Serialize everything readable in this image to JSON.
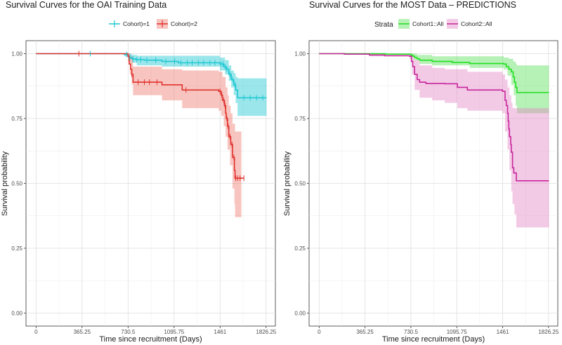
{
  "chart_data": [
    {
      "type": "line",
      "title": "Survival Curves for the OAI Training Data",
      "xlabel": "Time since recruitment (Days)",
      "ylabel": "Survival probability",
      "xlim": [
        -80,
        1900
      ],
      "ylim": [
        -0.05,
        1.05
      ],
      "x_ticks": [
        0,
        365.25,
        730.5,
        1095.75,
        1461,
        1826.25
      ],
      "x_tick_labels": [
        "0",
        "365.25",
        "730.5",
        "1095.75",
        "1461",
        "1826.25"
      ],
      "y_ticks": [
        0,
        0.25,
        0.5,
        0.75,
        1
      ],
      "y_tick_labels": [
        "0.00",
        "0.25",
        "0.50",
        "0.75",
        "1.00"
      ],
      "legend": {
        "title": "",
        "position": "top"
      },
      "series": [
        {
          "name": "Cohort)=1",
          "color": "#20c8d2",
          "fill": "#20c8d2",
          "steps": [
            [
              0,
              1.0
            ],
            [
              700,
              0.997
            ],
            [
              730,
              0.99
            ],
            [
              740,
              0.985
            ],
            [
              760,
              0.98
            ],
            [
              790,
              0.977
            ],
            [
              860,
              0.975
            ],
            [
              1000,
              0.97
            ],
            [
              1130,
              0.965
            ],
            [
              1460,
              0.96
            ],
            [
              1490,
              0.95
            ],
            [
              1510,
              0.94
            ],
            [
              1530,
              0.92
            ],
            [
              1550,
              0.9
            ],
            [
              1570,
              0.88
            ],
            [
              1585,
              0.86
            ],
            [
              1600,
              0.83
            ],
            [
              1830,
              0.83
            ]
          ],
          "lower": [
            [
              0,
              1.0
            ],
            [
              700,
              0.99
            ],
            [
              730,
              0.98
            ],
            [
              760,
              0.965
            ],
            [
              800,
              0.955
            ],
            [
              1000,
              0.95
            ],
            [
              1460,
              0.935
            ],
            [
              1500,
              0.92
            ],
            [
              1530,
              0.895
            ],
            [
              1550,
              0.87
            ],
            [
              1570,
              0.84
            ],
            [
              1585,
              0.81
            ],
            [
              1600,
              0.76
            ],
            [
              1830,
              0.76
            ]
          ],
          "upper": [
            [
              0,
              1.0
            ],
            [
              730,
              1.0
            ],
            [
              760,
              0.995
            ],
            [
              800,
              0.992
            ],
            [
              1460,
              0.985
            ],
            [
              1500,
              0.975
            ],
            [
              1530,
              0.955
            ],
            [
              1550,
              0.935
            ],
            [
              1570,
              0.925
            ],
            [
              1585,
              0.91
            ],
            [
              1600,
              0.905
            ],
            [
              1830,
              0.905
            ]
          ],
          "censor": [
            430,
            720,
            745,
            770,
            800,
            830,
            880,
            950,
            1030,
            1100,
            1150,
            1200,
            1240,
            1290,
            1330,
            1380,
            1420,
            1470,
            1485,
            1500,
            1515,
            1540,
            1560,
            1580,
            1650,
            1700,
            1750,
            1800
          ]
        },
        {
          "name": "Cohort)=2",
          "color": "#e0332e",
          "fill": "#f07c72",
          "steps": [
            [
              0,
              1.0
            ],
            [
              730,
              0.99
            ],
            [
              740,
              0.96
            ],
            [
              750,
              0.94
            ],
            [
              760,
              0.92
            ],
            [
              770,
              0.89
            ],
            [
              1000,
              0.88
            ],
            [
              1160,
              0.86
            ],
            [
              1450,
              0.855
            ],
            [
              1470,
              0.84
            ],
            [
              1480,
              0.82
            ],
            [
              1495,
              0.8
            ],
            [
              1505,
              0.77
            ],
            [
              1510,
              0.75
            ],
            [
              1520,
              0.72
            ],
            [
              1530,
              0.68
            ],
            [
              1545,
              0.65
            ],
            [
              1560,
              0.6
            ],
            [
              1575,
              0.55
            ],
            [
              1580,
              0.52
            ],
            [
              1650,
              0.52
            ]
          ],
          "lower": [
            [
              0,
              1.0
            ],
            [
              730,
              0.97
            ],
            [
              745,
              0.92
            ],
            [
              760,
              0.88
            ],
            [
              770,
              0.84
            ],
            [
              1000,
              0.82
            ],
            [
              1160,
              0.79
            ],
            [
              1450,
              0.78
            ],
            [
              1470,
              0.76
            ],
            [
              1490,
              0.72
            ],
            [
              1505,
              0.68
            ],
            [
              1520,
              0.63
            ],
            [
              1540,
              0.57
            ],
            [
              1560,
              0.48
            ],
            [
              1575,
              0.42
            ],
            [
              1580,
              0.37
            ],
            [
              1630,
              0.37
            ]
          ],
          "upper": [
            [
              0,
              1.0
            ],
            [
              730,
              1.0
            ],
            [
              750,
              0.99
            ],
            [
              770,
              0.95
            ],
            [
              1000,
              0.94
            ],
            [
              1160,
              0.935
            ],
            [
              1450,
              0.93
            ],
            [
              1480,
              0.91
            ],
            [
              1505,
              0.87
            ],
            [
              1520,
              0.84
            ],
            [
              1530,
              0.8
            ],
            [
              1545,
              0.77
            ],
            [
              1560,
              0.73
            ],
            [
              1580,
              0.7
            ],
            [
              1630,
              0.7
            ]
          ],
          "censor": [
            340,
            760,
            810,
            860,
            900,
            960,
            1190,
            1460,
            1475,
            1490,
            1500,
            1515,
            1525,
            1540,
            1555,
            1570,
            1585,
            1600,
            1620,
            1650
          ]
        }
      ]
    },
    {
      "type": "line",
      "title": "Survival Curves for the MOST Data – PREDICTIONS",
      "xlabel": "Time since recruitment (Days)",
      "ylabel": "Survival probability",
      "xlim": [
        -80,
        1900
      ],
      "ylim": [
        -0.05,
        1.05
      ],
      "x_ticks": [
        0,
        365.25,
        730.5,
        1095.75,
        1461,
        1826.25
      ],
      "x_tick_labels": [
        "0",
        "365.25",
        "730.5",
        "1095.75",
        "1461",
        "1826.25"
      ],
      "y_ticks": [
        0,
        0.25,
        0.5,
        0.75,
        1
      ],
      "y_tick_labels": [
        "0.00",
        "0.25",
        "0.50",
        "0.75",
        "1.00"
      ],
      "legend": {
        "title": "Strata",
        "position": "top"
      },
      "series": [
        {
          "name": "Cohort1::All",
          "color": "#22e022",
          "fill": "#5ee05e",
          "steps": [
            [
              0,
              1.0
            ],
            [
              530,
              0.998
            ],
            [
              730,
              0.995
            ],
            [
              745,
              0.99
            ],
            [
              760,
              0.985
            ],
            [
              780,
              0.98
            ],
            [
              800,
              0.975
            ],
            [
              900,
              0.97
            ],
            [
              1060,
              0.966
            ],
            [
              1200,
              0.962
            ],
            [
              1470,
              0.96
            ],
            [
              1490,
              0.95
            ],
            [
              1510,
              0.94
            ],
            [
              1530,
              0.93
            ],
            [
              1545,
              0.91
            ],
            [
              1555,
              0.89
            ],
            [
              1565,
              0.87
            ],
            [
              1575,
              0.85
            ],
            [
              1830,
              0.85
            ]
          ],
          "lower": [
            [
              0,
              1.0
            ],
            [
              730,
              0.99
            ],
            [
              760,
              0.975
            ],
            [
              800,
              0.96
            ],
            [
              900,
              0.955
            ],
            [
              1200,
              0.945
            ],
            [
              1470,
              0.94
            ],
            [
              1500,
              0.915
            ],
            [
              1530,
              0.88
            ],
            [
              1550,
              0.84
            ],
            [
              1565,
              0.8
            ],
            [
              1575,
              0.77
            ],
            [
              1830,
              0.77
            ]
          ],
          "upper": [
            [
              0,
              1.0
            ],
            [
              745,
              1.0
            ],
            [
              780,
              0.995
            ],
            [
              900,
              0.99
            ],
            [
              1470,
              0.985
            ],
            [
              1510,
              0.98
            ],
            [
              1545,
              0.97
            ],
            [
              1565,
              0.96
            ],
            [
              1575,
              0.955
            ],
            [
              1830,
              0.955
            ]
          ]
        },
        {
          "name": "Cohort2::All",
          "color": "#c8269c",
          "fill": "#e58ac8",
          "steps": [
            [
              0,
              1.0
            ],
            [
              200,
              0.998
            ],
            [
              400,
              0.995
            ],
            [
              520,
              0.992
            ],
            [
              720,
              0.99
            ],
            [
              735,
              0.97
            ],
            [
              745,
              0.95
            ],
            [
              760,
              0.92
            ],
            [
              780,
              0.9
            ],
            [
              800,
              0.89
            ],
            [
              850,
              0.885
            ],
            [
              1000,
              0.884
            ],
            [
              1100,
              0.87
            ],
            [
              1180,
              0.86
            ],
            [
              1460,
              0.855
            ],
            [
              1480,
              0.82
            ],
            [
              1490,
              0.8
            ],
            [
              1500,
              0.77
            ],
            [
              1505,
              0.74
            ],
            [
              1510,
              0.71
            ],
            [
              1515,
              0.68
            ],
            [
              1525,
              0.65
            ],
            [
              1530,
              0.62
            ],
            [
              1540,
              0.56
            ],
            [
              1550,
              0.54
            ],
            [
              1570,
              0.51
            ],
            [
              1830,
              0.51
            ]
          ],
          "lower": [
            [
              0,
              1.0
            ],
            [
              400,
              0.99
            ],
            [
              720,
              0.98
            ],
            [
              740,
              0.92
            ],
            [
              760,
              0.86
            ],
            [
              800,
              0.83
            ],
            [
              900,
              0.82
            ],
            [
              1000,
              0.81
            ],
            [
              1100,
              0.79
            ],
            [
              1180,
              0.78
            ],
            [
              1460,
              0.77
            ],
            [
              1480,
              0.7
            ],
            [
              1500,
              0.63
            ],
            [
              1515,
              0.55
            ],
            [
              1530,
              0.47
            ],
            [
              1540,
              0.42
            ],
            [
              1555,
              0.38
            ],
            [
              1570,
              0.33
            ],
            [
              1830,
              0.33
            ]
          ],
          "upper": [
            [
              0,
              1.0
            ],
            [
              720,
              0.995
            ],
            [
              740,
              0.99
            ],
            [
              760,
              0.975
            ],
            [
              800,
              0.955
            ],
            [
              900,
              0.945
            ],
            [
              1000,
              0.94
            ],
            [
              1180,
              0.93
            ],
            [
              1460,
              0.92
            ],
            [
              1480,
              0.9
            ],
            [
              1500,
              0.87
            ],
            [
              1515,
              0.84
            ],
            [
              1530,
              0.81
            ],
            [
              1540,
              0.79
            ],
            [
              1570,
              0.79
            ],
            [
              1830,
              0.79
            ]
          ],
          "censor": []
        }
      ]
    }
  ]
}
